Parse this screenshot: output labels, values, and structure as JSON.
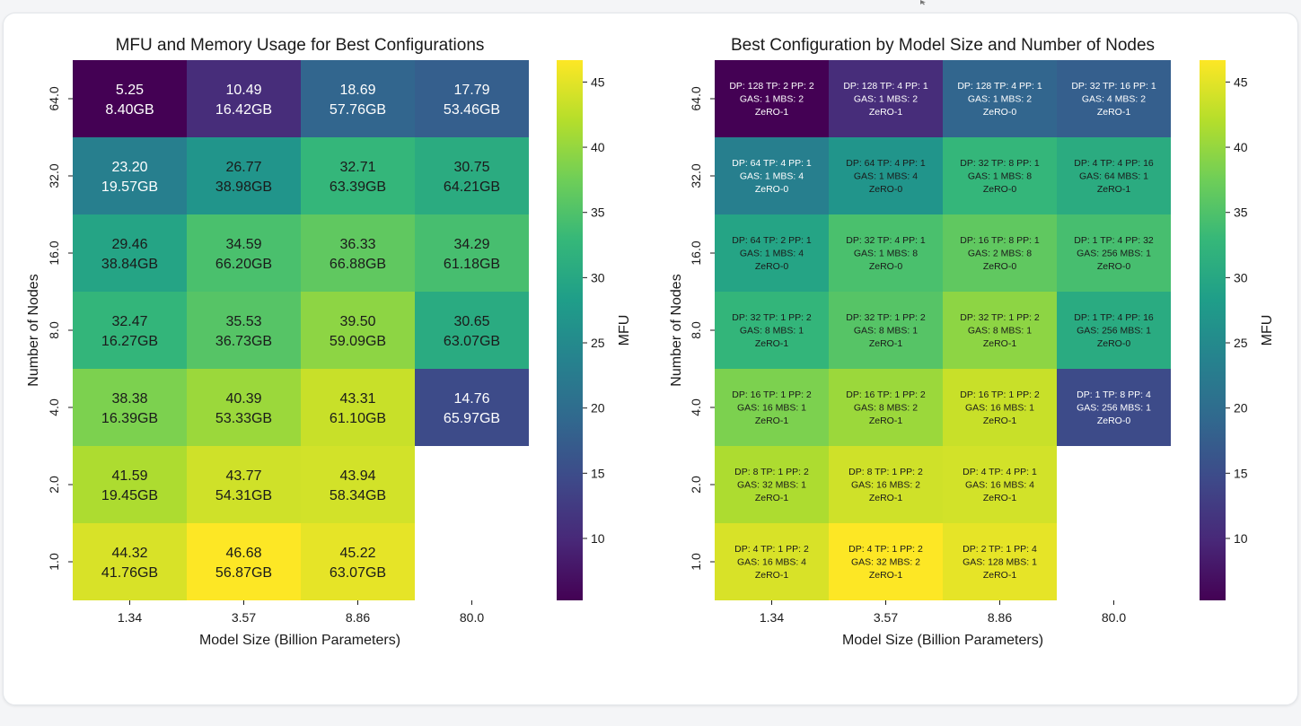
{
  "chart_data": [
    {
      "type": "heatmap",
      "title": "MFU and Memory Usage for Best Configurations",
      "xlabel": "Model Size (Billion Parameters)",
      "ylabel": "Number of Nodes",
      "x_categories": [
        "1.34",
        "3.57",
        "8.86",
        "80.0"
      ],
      "y_categories": [
        "64.0",
        "32.0",
        "16.0",
        "8.0",
        "4.0",
        "2.0",
        "1.0"
      ],
      "colorbar": {
        "label": "MFU",
        "ticks": [
          "10",
          "15",
          "20",
          "25",
          "30",
          "35",
          "40",
          "45"
        ],
        "vmin": 5.25,
        "vmax": 46.68,
        "colormap": "viridis"
      },
      "mfu": [
        [
          5.25,
          10.49,
          18.69,
          17.79
        ],
        [
          23.2,
          26.77,
          32.71,
          30.75
        ],
        [
          29.46,
          34.59,
          36.33,
          34.29
        ],
        [
          32.47,
          35.53,
          39.5,
          30.65
        ],
        [
          38.38,
          40.39,
          43.31,
          14.76
        ],
        [
          41.59,
          43.77,
          43.94,
          null
        ],
        [
          44.32,
          46.68,
          45.22,
          null
        ]
      ],
      "labels": [
        [
          [
            "5.25",
            "8.40GB"
          ],
          [
            "10.49",
            "16.42GB"
          ],
          [
            "18.69",
            "57.76GB"
          ],
          [
            "17.79",
            "53.46GB"
          ]
        ],
        [
          [
            "23.20",
            "19.57GB"
          ],
          [
            "26.77",
            "38.98GB"
          ],
          [
            "32.71",
            "63.39GB"
          ],
          [
            "30.75",
            "64.21GB"
          ]
        ],
        [
          [
            "29.46",
            "38.84GB"
          ],
          [
            "34.59",
            "66.20GB"
          ],
          [
            "36.33",
            "66.88GB"
          ],
          [
            "34.29",
            "61.18GB"
          ]
        ],
        [
          [
            "32.47",
            "16.27GB"
          ],
          [
            "35.53",
            "36.73GB"
          ],
          [
            "39.50",
            "59.09GB"
          ],
          [
            "30.65",
            "63.07GB"
          ]
        ],
        [
          [
            "38.38",
            "16.39GB"
          ],
          [
            "40.39",
            "53.33GB"
          ],
          [
            "43.31",
            "61.10GB"
          ],
          [
            "14.76",
            "65.97GB"
          ]
        ],
        [
          [
            "41.59",
            "19.45GB"
          ],
          [
            "43.77",
            "54.31GB"
          ],
          [
            "43.94",
            "58.34GB"
          ],
          null
        ],
        [
          [
            "44.32",
            "41.76GB"
          ],
          [
            "46.68",
            "56.87GB"
          ],
          [
            "45.22",
            "63.07GB"
          ],
          null
        ]
      ]
    },
    {
      "type": "heatmap",
      "title": "Best Configuration by Model Size and Number of Nodes",
      "xlabel": "Model Size (Billion Parameters)",
      "ylabel": "Number of Nodes",
      "x_categories": [
        "1.34",
        "3.57",
        "8.86",
        "80.0"
      ],
      "y_categories": [
        "64.0",
        "32.0",
        "16.0",
        "8.0",
        "4.0",
        "2.0",
        "1.0"
      ],
      "colorbar": {
        "label": "MFU",
        "ticks": [
          "10",
          "15",
          "20",
          "25",
          "30",
          "35",
          "40",
          "45"
        ],
        "vmin": 5.25,
        "vmax": 46.68,
        "colormap": "viridis"
      },
      "mfu": [
        [
          5.25,
          10.49,
          18.69,
          17.79
        ],
        [
          23.2,
          26.77,
          32.71,
          30.75
        ],
        [
          29.46,
          34.59,
          36.33,
          34.29
        ],
        [
          32.47,
          35.53,
          39.5,
          30.65
        ],
        [
          38.38,
          40.39,
          43.31,
          14.76
        ],
        [
          41.59,
          43.77,
          43.94,
          null
        ],
        [
          44.32,
          46.68,
          45.22,
          null
        ]
      ],
      "labels": [
        [
          [
            "DP: 128  TP: 2  PP: 2",
            "GAS: 1  MBS: 2",
            "ZeRO-1"
          ],
          [
            "DP: 128  TP: 4  PP: 1",
            "GAS: 1  MBS: 2",
            "ZeRO-1"
          ],
          [
            "DP: 128  TP: 4  PP: 1",
            "GAS: 1  MBS: 2",
            "ZeRO-0"
          ],
          [
            "DP: 32  TP: 16  PP: 1",
            "GAS: 4  MBS: 2",
            "ZeRO-1"
          ]
        ],
        [
          [
            "DP: 64  TP: 4  PP: 1",
            "GAS: 1  MBS: 4",
            "ZeRO-0"
          ],
          [
            "DP: 64  TP: 4  PP: 1",
            "GAS: 1  MBS: 4",
            "ZeRO-0"
          ],
          [
            "DP: 32  TP: 8  PP: 1",
            "GAS: 1  MBS: 8",
            "ZeRO-0"
          ],
          [
            "DP: 4  TP: 4  PP: 16",
            "GAS: 64  MBS: 1",
            "ZeRO-1"
          ]
        ],
        [
          [
            "DP: 64  TP: 2  PP: 1",
            "GAS: 1  MBS: 4",
            "ZeRO-0"
          ],
          [
            "DP: 32  TP: 4  PP: 1",
            "GAS: 1  MBS: 8",
            "ZeRO-0"
          ],
          [
            "DP: 16  TP: 8  PP: 1",
            "GAS: 2  MBS: 8",
            "ZeRO-0"
          ],
          [
            "DP: 1  TP: 4  PP: 32",
            "GAS: 256  MBS: 1",
            "ZeRO-0"
          ]
        ],
        [
          [
            "DP: 32  TP: 1  PP: 2",
            "GAS: 8  MBS: 1",
            "ZeRO-1"
          ],
          [
            "DP: 32  TP: 1  PP: 2",
            "GAS: 8  MBS: 1",
            "ZeRO-1"
          ],
          [
            "DP: 32  TP: 1  PP: 2",
            "GAS: 8  MBS: 1",
            "ZeRO-1"
          ],
          [
            "DP: 1  TP: 4  PP: 16",
            "GAS: 256  MBS: 1",
            "ZeRO-0"
          ]
        ],
        [
          [
            "DP: 16  TP: 1  PP: 2",
            "GAS: 16  MBS: 1",
            "ZeRO-1"
          ],
          [
            "DP: 16  TP: 1  PP: 2",
            "GAS: 8  MBS: 2",
            "ZeRO-1"
          ],
          [
            "DP: 16  TP: 1  PP: 2",
            "GAS: 16  MBS: 1",
            "ZeRO-1"
          ],
          [
            "DP: 1  TP: 8  PP: 4",
            "GAS: 256  MBS: 1",
            "ZeRO-0"
          ]
        ],
        [
          [
            "DP: 8  TP: 1  PP: 2",
            "GAS: 32  MBS: 1",
            "ZeRO-1"
          ],
          [
            "DP: 8  TP: 1  PP: 2",
            "GAS: 16  MBS: 2",
            "ZeRO-1"
          ],
          [
            "DP: 4  TP: 4  PP: 1",
            "GAS: 16  MBS: 4",
            "ZeRO-1"
          ],
          null
        ],
        [
          [
            "DP: 4  TP: 1  PP: 2",
            "GAS: 16  MBS: 4",
            "ZeRO-1"
          ],
          [
            "DP: 4  TP: 1  PP: 2",
            "GAS: 32  MBS: 2",
            "ZeRO-1"
          ],
          [
            "DP: 2  TP: 1  PP: 4",
            "GAS: 128  MBS: 1",
            "ZeRO-1"
          ],
          null
        ]
      ]
    }
  ]
}
